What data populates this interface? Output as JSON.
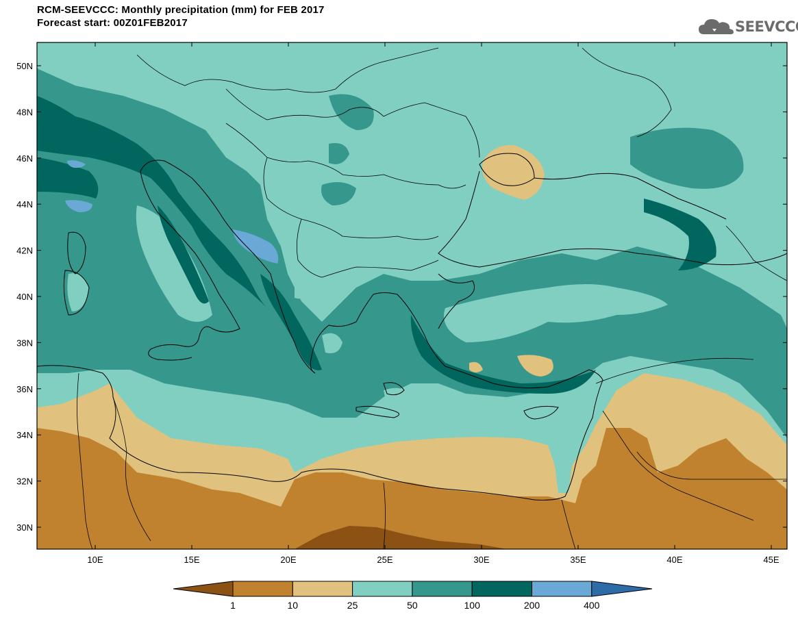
{
  "title_line1": "RCM-SEEVCCC: Monthly precipitation (mm) for FEB 2017",
  "title_line2": "Forecast start: 00Z01FEB2017",
  "logo_text": "SEEVCCC",
  "lat_ticks": [
    "50N",
    "48N",
    "46N",
    "44N",
    "42N",
    "40N",
    "38N",
    "36N",
    "34N",
    "32N",
    "30N"
  ],
  "lon_ticks": [
    "10E",
    "15E",
    "20E",
    "25E",
    "30E",
    "35E",
    "40E",
    "45E"
  ],
  "colorbar": {
    "labels": [
      "1",
      "10",
      "25",
      "50",
      "100",
      "200",
      "400"
    ],
    "colors": {
      "below_1": "#8b5214",
      "1_10": "#c0822e",
      "10_25": "#e0c27e",
      "25_50": "#80cfc0",
      "50_100": "#36978c",
      "100_200": "#01665e",
      "200_400": "#6aa8d6",
      "above_400": "#2e6ca8"
    }
  }
}
